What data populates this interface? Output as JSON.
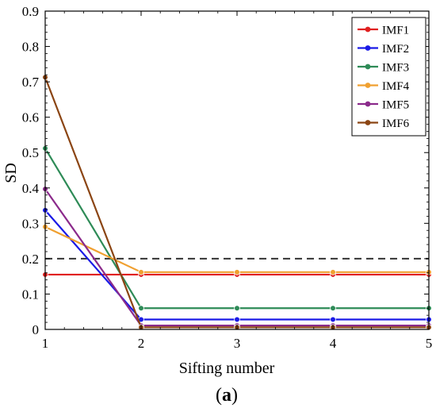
{
  "chart_data": {
    "type": "line",
    "x": [
      1,
      2,
      3,
      4,
      5
    ],
    "xlabel": "Sifting number",
    "ylabel": "SD",
    "xlim": [
      1,
      5
    ],
    "ylim": [
      0,
      0.9
    ],
    "xticks": [
      "1",
      "2",
      "3",
      "4",
      "5"
    ],
    "yticks": [
      "0",
      "0.1",
      "0.2",
      "0.3",
      "0.4",
      "0.5",
      "0.6",
      "0.7",
      "0.8",
      "0.9"
    ],
    "grid": false,
    "legend_position": "top-right",
    "threshold": {
      "value": 0.2,
      "style": "dashed",
      "color": "#333333"
    },
    "series": [
      {
        "name": "IMF1",
        "color": "#e02020",
        "values": [
          0.155,
          0.155,
          0.155,
          0.155,
          0.155
        ]
      },
      {
        "name": "IMF2",
        "color": "#1a1ae6",
        "values": [
          0.337,
          0.028,
          0.028,
          0.028,
          0.028
        ]
      },
      {
        "name": "IMF3",
        "color": "#2e8b57",
        "values": [
          0.512,
          0.06,
          0.06,
          0.06,
          0.06
        ]
      },
      {
        "name": "IMF4",
        "color": "#f0a030",
        "values": [
          0.29,
          0.162,
          0.162,
          0.162,
          0.162
        ]
      },
      {
        "name": "IMF5",
        "color": "#8b2a8b",
        "values": [
          0.397,
          0.011,
          0.011,
          0.011,
          0.011
        ]
      },
      {
        "name": "IMF6",
        "color": "#8b4513",
        "values": [
          0.713,
          0.006,
          0.006,
          0.006,
          0.006
        ]
      }
    ]
  },
  "caption": {
    "open": "(",
    "letter": "a",
    "close": ")"
  }
}
